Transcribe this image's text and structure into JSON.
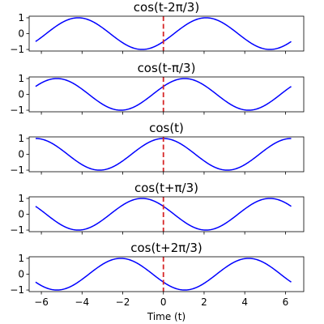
{
  "chart_data": [
    {
      "type": "line",
      "title": "cos(t-2π/3)",
      "phase": -2.0943951,
      "xlim": [
        -6.6,
        6.9
      ],
      "ylim": [
        -1.1,
        1.1
      ],
      "yticks": [
        -1,
        0,
        1
      ],
      "ytick_labels": [
        "−1",
        "0",
        "1"
      ],
      "vline_x": 0,
      "series": [
        {
          "x_range": [
            -6.283,
            6.283
          ],
          "function": "cos(t-2π/3)"
        }
      ]
    },
    {
      "type": "line",
      "title": "cos(t-π/3)",
      "phase": -1.0471976,
      "xlim": [
        -6.6,
        6.9
      ],
      "ylim": [
        -1.1,
        1.1
      ],
      "yticks": [
        -1,
        0,
        1
      ],
      "ytick_labels": [
        "−1",
        "0",
        "1"
      ],
      "vline_x": 0,
      "series": [
        {
          "x_range": [
            -6.283,
            6.283
          ],
          "function": "cos(t-π/3)"
        }
      ]
    },
    {
      "type": "line",
      "title": "cos(t)",
      "phase": 0,
      "xlim": [
        -6.6,
        6.9
      ],
      "ylim": [
        -1.1,
        1.1
      ],
      "yticks": [
        -1,
        0,
        1
      ],
      "ytick_labels": [
        "−1",
        "0",
        "1"
      ],
      "vline_x": 0,
      "series": [
        {
          "x_range": [
            -6.283,
            6.283
          ],
          "function": "cos(t)"
        }
      ]
    },
    {
      "type": "line",
      "title": "cos(t+π/3)",
      "phase": 1.0471976,
      "xlim": [
        -6.6,
        6.9
      ],
      "ylim": [
        -1.1,
        1.1
      ],
      "yticks": [
        -1,
        0,
        1
      ],
      "ytick_labels": [
        "−1",
        "0",
        "1"
      ],
      "vline_x": 0,
      "series": [
        {
          "x_range": [
            -6.283,
            6.283
          ],
          "function": "cos(t+π/3)"
        }
      ]
    },
    {
      "type": "line",
      "title": "cos(t+2π/3)",
      "phase": 2.0943951,
      "xlim": [
        -6.6,
        6.9
      ],
      "ylim": [
        -1.1,
        1.1
      ],
      "yticks": [
        -1,
        0,
        1
      ],
      "ytick_labels": [
        "−1",
        "0",
        "1"
      ],
      "vline_x": 0,
      "series": [
        {
          "x_range": [
            -6.283,
            6.283
          ],
          "function": "cos(t+2π/3)"
        }
      ]
    }
  ],
  "shared": {
    "xticks": [
      -6,
      -4,
      -2,
      0,
      2,
      4,
      6
    ],
    "xtick_labels": [
      "−6",
      "−4",
      "−2",
      "0",
      "2",
      "4",
      "6"
    ],
    "xlabel": "Time (t)",
    "line_color": "#0000ff",
    "vline_color": "#d62728"
  }
}
